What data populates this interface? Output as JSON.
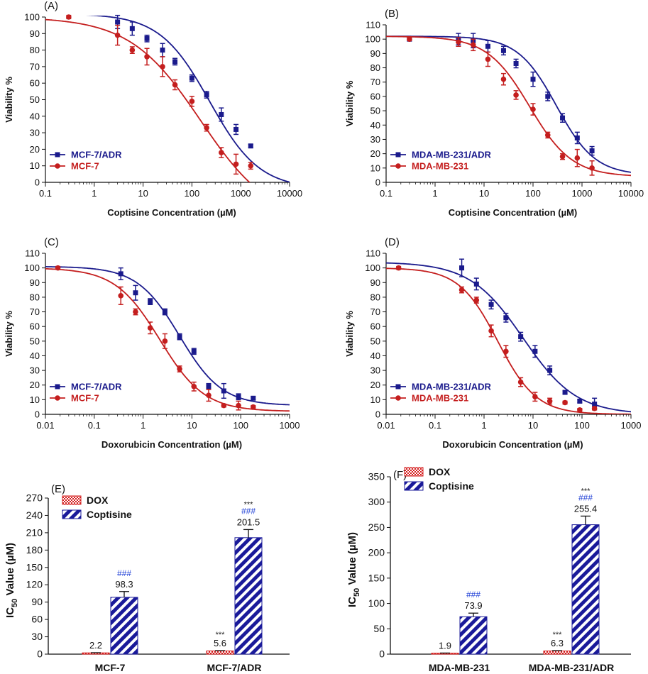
{
  "colors": {
    "blue": "#1a1a8c",
    "red": "#c41e1e",
    "hash": "#1f3fd6",
    "axis": "#111111"
  },
  "chart_data": [
    {
      "id": "A",
      "panel_label": "(A)",
      "type": "scatter",
      "xscale": "log",
      "xlim": [
        0.1,
        10000
      ],
      "ylim": [
        0,
        100
      ],
      "xticks": [
        "0.1",
        "1",
        "10",
        "100",
        "1000",
        "10000"
      ],
      "yticks": [
        "0",
        "10",
        "20",
        "30",
        "40",
        "50",
        "60",
        "70",
        "80",
        "90",
        "100"
      ],
      "xlabel": "Coptisine Concentration (µM)",
      "ylabel": "Viability %",
      "legend_position": "bottom-left",
      "series": [
        {
          "name": "MCF-7/ADR",
          "color": "#1a1a8c",
          "marker": "square",
          "fit": {
            "top": 102,
            "bottom": -4,
            "ic50": 230,
            "hill": 0.85
          },
          "points": [
            [
              3,
              97,
              4
            ],
            [
              6,
              93,
              4
            ],
            [
              12,
              87,
              2
            ],
            [
              25,
              80,
              4
            ],
            [
              45,
              73,
              2
            ],
            [
              100,
              63,
              2
            ],
            [
              200,
              53,
              2
            ],
            [
              400,
              41,
              4
            ],
            [
              800,
              32,
              3
            ],
            [
              1600,
              22,
              1
            ]
          ]
        },
        {
          "name": "MCF-7",
          "color": "#c41e1e",
          "marker": "circle",
          "fit": {
            "top": 100,
            "bottom": -25,
            "ic50": 150,
            "hill": 0.6
          },
          "points": [
            [
              0.3,
              100,
              1
            ],
            [
              3,
              89,
              6
            ],
            [
              6,
              80,
              2
            ],
            [
              12,
              76,
              5
            ],
            [
              25,
              70,
              6
            ],
            [
              45,
              59,
              3
            ],
            [
              100,
              49,
              3
            ],
            [
              200,
              33,
              2
            ],
            [
              400,
              18,
              3
            ],
            [
              800,
              11,
              6
            ],
            [
              1600,
              10,
              2
            ]
          ]
        }
      ]
    },
    {
      "id": "B",
      "panel_label": "(B)",
      "type": "scatter",
      "xscale": "log",
      "xlim": [
        0.1,
        10000
      ],
      "ylim": [
        0,
        110
      ],
      "xticks": [
        "0.1",
        "1",
        "10",
        "100",
        "1000",
        "10000"
      ],
      "yticks": [
        "0",
        "10",
        "20",
        "30",
        "40",
        "50",
        "60",
        "70",
        "80",
        "90",
        "100",
        "110"
      ],
      "xlabel": "Coptisine Concentration (µM)",
      "ylabel": "Viability %",
      "legend_position": "bottom-left",
      "series": [
        {
          "name": "MDA-MB-231/ADR",
          "color": "#1a1a8c",
          "marker": "square",
          "fit": {
            "top": 102,
            "bottom": 5,
            "ic50": 300,
            "hill": 1.1
          },
          "points": [
            [
              0.3,
              100,
              1
            ],
            [
              3,
              100,
              4
            ],
            [
              6,
              99,
              5
            ],
            [
              12,
              95,
              4
            ],
            [
              25,
              92,
              3
            ],
            [
              45,
              83,
              3
            ],
            [
              100,
              72,
              5
            ],
            [
              200,
              60,
              3
            ],
            [
              400,
              45,
              3
            ],
            [
              800,
              31,
              4
            ],
            [
              1600,
              22,
              3
            ]
          ]
        },
        {
          "name": "MDA-MB-231",
          "color": "#c41e1e",
          "marker": "circle",
          "fit": {
            "top": 102,
            "bottom": 4,
            "ic50": 85,
            "hill": 1.0
          },
          "points": [
            [
              0.3,
              100,
              1
            ],
            [
              3,
              98,
              3
            ],
            [
              6,
              96,
              4
            ],
            [
              12,
              86,
              5
            ],
            [
              25,
              72,
              4
            ],
            [
              45,
              61,
              3
            ],
            [
              100,
              51,
              4
            ],
            [
              200,
              33,
              2
            ],
            [
              400,
              18,
              2
            ],
            [
              800,
              17,
              6
            ],
            [
              1600,
              10,
              5
            ]
          ]
        }
      ]
    },
    {
      "id": "C",
      "panel_label": "(C)",
      "type": "scatter",
      "xscale": "log",
      "xlim": [
        0.01,
        1000
      ],
      "ylim": [
        0,
        110
      ],
      "xticks": [
        "0.01",
        "0.1",
        "1",
        "10",
        "100",
        "1000"
      ],
      "yticks": [
        "0",
        "10",
        "20",
        "30",
        "40",
        "50",
        "60",
        "70",
        "80",
        "90",
        "100",
        "110"
      ],
      "xlabel": "Doxorubicin Concentration (µM)",
      "ylabel": "Viability %",
      "legend_position": "bottom-left",
      "series": [
        {
          "name": "MCF-7/ADR",
          "color": "#1a1a8c",
          "marker": "square",
          "fit": {
            "top": 101,
            "bottom": 6,
            "ic50": 5.6,
            "hill": 1.0
          },
          "points": [
            [
              0.35,
              96,
              4
            ],
            [
              0.7,
              83,
              5
            ],
            [
              1.4,
              77,
              2
            ],
            [
              2.8,
              70,
              2
            ],
            [
              5.6,
              53,
              2
            ],
            [
              11,
              43,
              2
            ],
            [
              22,
              19,
              2
            ],
            [
              45,
              16,
              5
            ],
            [
              90,
              12,
              2
            ],
            [
              180,
              11,
              1
            ]
          ]
        },
        {
          "name": "MCF-7",
          "color": "#c41e1e",
          "marker": "circle",
          "fit": {
            "top": 100,
            "bottom": 2,
            "ic50": 2.2,
            "hill": 0.95
          },
          "points": [
            [
              0.018,
              100,
              1
            ],
            [
              0.35,
              81,
              6
            ],
            [
              0.7,
              70,
              2
            ],
            [
              1.4,
              59,
              4
            ],
            [
              2.8,
              50,
              5
            ],
            [
              5.6,
              31,
              2
            ],
            [
              11,
              19,
              3
            ],
            [
              22,
              13,
              4
            ],
            [
              45,
              6,
              1
            ],
            [
              90,
              6,
              3
            ],
            [
              180,
              5,
              1
            ]
          ]
        }
      ]
    },
    {
      "id": "D",
      "panel_label": "(D)",
      "type": "scatter",
      "xscale": "log",
      "xlim": [
        0.01,
        1000
      ],
      "ylim": [
        0,
        110
      ],
      "xticks": [
        "0.01",
        "0.1",
        "1",
        "10",
        "100",
        "1000"
      ],
      "yticks": [
        "0",
        "10",
        "20",
        "30",
        "40",
        "50",
        "60",
        "70",
        "80",
        "90",
        "100",
        "110"
      ],
      "xlabel": "Doxorubicin Concentration (µM)",
      "ylabel": "Viability %",
      "legend_position": "bottom-left",
      "series": [
        {
          "name": "MDA-MB-231/ADR",
          "color": "#1a1a8c",
          "marker": "square",
          "fit": {
            "top": 104,
            "bottom": 0,
            "ic50": 6.3,
            "hill": 0.8
          },
          "points": [
            [
              0.35,
              100,
              6
            ],
            [
              0.7,
              89,
              4
            ],
            [
              1.4,
              75,
              3
            ],
            [
              2.8,
              66,
              3
            ],
            [
              5.6,
              53,
              3
            ],
            [
              11,
              43,
              4
            ],
            [
              22,
              30,
              3
            ],
            [
              45,
              15,
              1
            ],
            [
              90,
              9,
              1
            ],
            [
              180,
              7,
              4
            ]
          ]
        },
        {
          "name": "MDA-MB-231",
          "color": "#c41e1e",
          "marker": "circle",
          "fit": {
            "top": 100,
            "bottom": 0,
            "ic50": 1.9,
            "hill": 1.1
          },
          "points": [
            [
              0.018,
              100,
              1
            ],
            [
              0.35,
              85,
              2
            ],
            [
              0.7,
              78,
              2
            ],
            [
              1.4,
              57,
              4
            ],
            [
              2.8,
              43,
              4
            ],
            [
              5.6,
              22,
              3
            ],
            [
              11,
              12,
              3
            ],
            [
              22,
              9,
              2
            ],
            [
              45,
              8,
              1
            ],
            [
              90,
              3,
              1
            ],
            [
              180,
              4,
              1
            ]
          ]
        }
      ]
    },
    {
      "id": "E",
      "panel_label": "(E)",
      "type": "bar",
      "ylabel": "IC50 Value (µM)",
      "ylabel_main": "IC",
      "ylabel_sub": "50",
      "ylabel_rest": " Value (µM)",
      "ylim": [
        0,
        270
      ],
      "yticks": [
        "0",
        "30",
        "60",
        "90",
        "120",
        "150",
        "180",
        "210",
        "240",
        "270"
      ],
      "categories": [
        "MCF-7",
        "MCF-7/ADR"
      ],
      "legend_position": "top-left",
      "series": [
        {
          "name": "DOX",
          "pattern": "checker",
          "values": [
            2.2,
            5.6
          ],
          "errors": [
            0.3,
            0.5
          ],
          "labels": [
            "2.2",
            "5.6"
          ]
        },
        {
          "name": "Coptisine",
          "pattern": "stripes",
          "values": [
            98.3,
            201.5
          ],
          "errors": [
            10,
            14
          ],
          "labels": [
            "98.3",
            "201.5"
          ]
        }
      ],
      "annotations": [
        {
          "category": 1,
          "series": 0,
          "stars": "***"
        },
        {
          "category": 0,
          "series": 1,
          "hash": "###"
        },
        {
          "category": 1,
          "series": 1,
          "hash": "###",
          "stars": "***"
        }
      ]
    },
    {
      "id": "F",
      "panel_label": "(F)",
      "type": "bar",
      "ylabel": "IC50 Value (µM)",
      "ylabel_main": "IC",
      "ylabel_sub": "50",
      "ylabel_rest": " Value (µM)",
      "ylim": [
        0,
        350
      ],
      "yticks": [
        "0",
        "50",
        "100",
        "150",
        "200",
        "250",
        "300",
        "350"
      ],
      "categories": [
        "MDA-MB-231",
        "MDA-MB-231/ADR"
      ],
      "legend_position": "top-left",
      "series": [
        {
          "name": "DOX",
          "pattern": "checker",
          "values": [
            1.9,
            6.3
          ],
          "errors": [
            0.3,
            0.6
          ],
          "labels": [
            "1.9",
            "6.3"
          ]
        },
        {
          "name": "Coptisine",
          "pattern": "stripes",
          "values": [
            73.9,
            255.4
          ],
          "errors": [
            7,
            17
          ],
          "labels": [
            "73.9",
            "255.4"
          ]
        }
      ],
      "annotations": [
        {
          "category": 1,
          "series": 0,
          "stars": "***"
        },
        {
          "category": 0,
          "series": 1,
          "hash": "###"
        },
        {
          "category": 1,
          "series": 1,
          "hash": "###",
          "stars": "***"
        }
      ]
    }
  ]
}
